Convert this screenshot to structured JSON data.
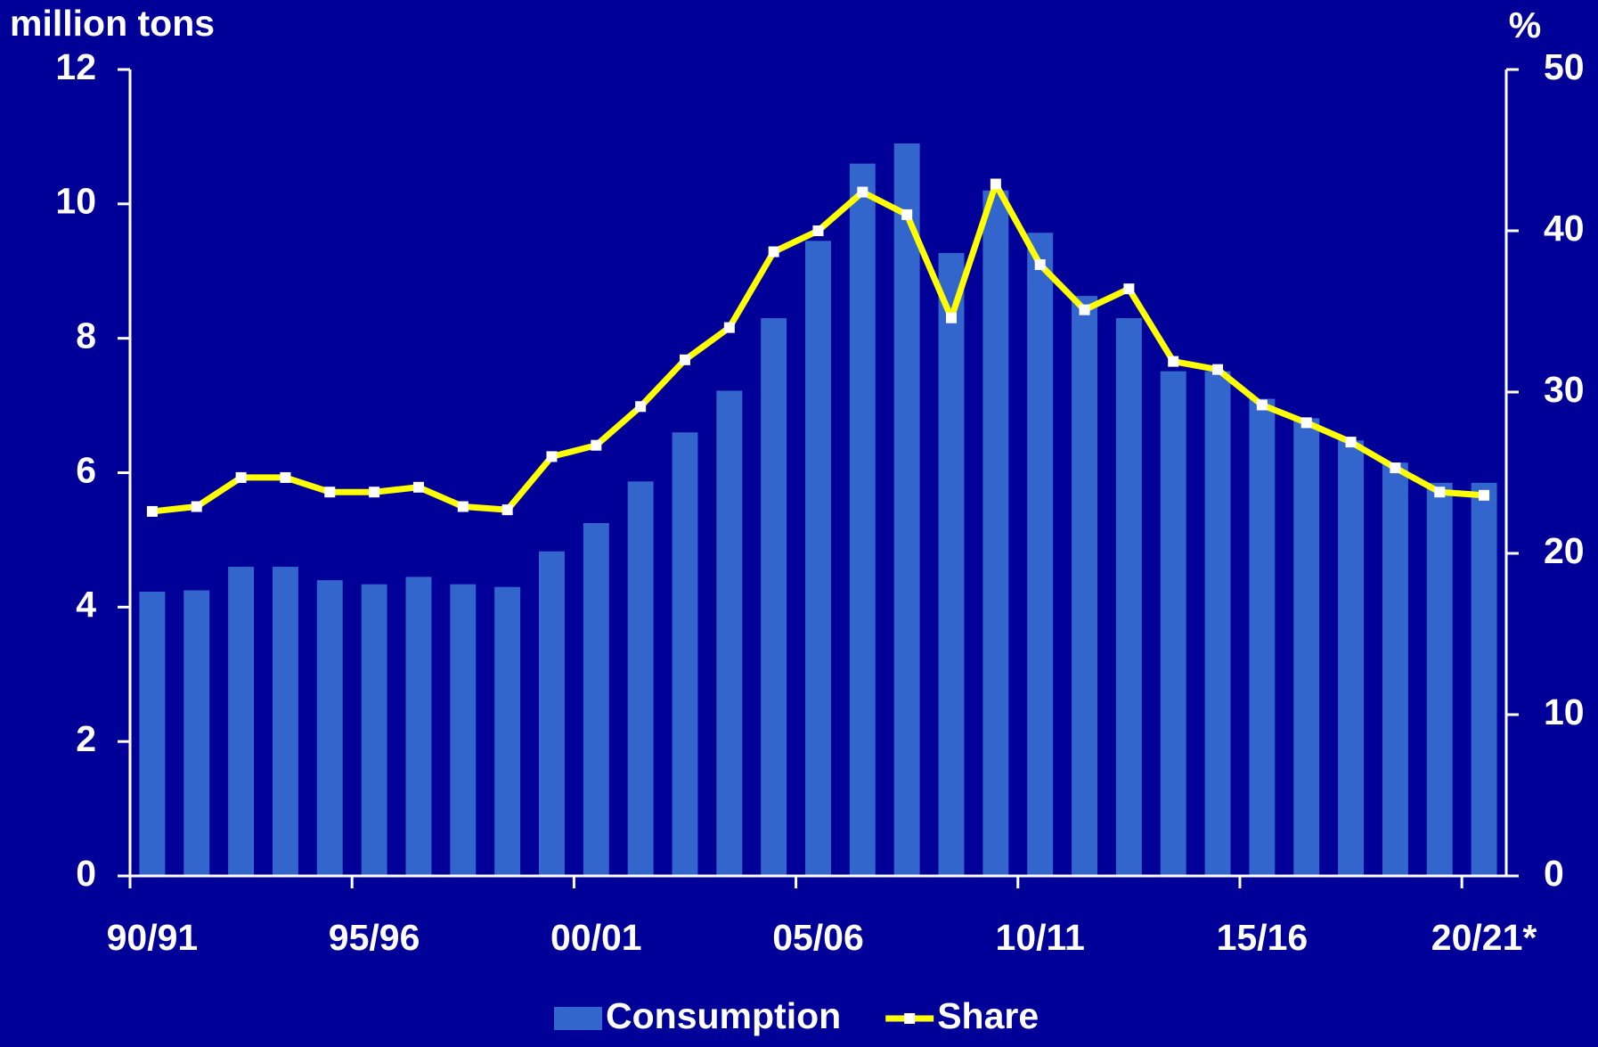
{
  "chart_data": {
    "type": "bar+line",
    "y_label": "million tons",
    "y2_label": "%",
    "categories": [
      "90/91",
      null,
      null,
      null,
      null,
      "95/96",
      null,
      null,
      null,
      null,
      "00/01",
      null,
      null,
      null,
      null,
      "05/06",
      null,
      null,
      null,
      null,
      "10/11",
      null,
      null,
      null,
      null,
      "15/16",
      null,
      null,
      null,
      null,
      "20/21*"
    ],
    "series": [
      {
        "name": "Consumption",
        "type": "bar",
        "color": "#3366cc",
        "values": [
          4.23,
          4.25,
          4.6,
          4.6,
          4.4,
          4.34,
          4.45,
          4.34,
          4.3,
          4.83,
          5.25,
          5.87,
          6.6,
          7.22,
          8.3,
          9.45,
          10.6,
          10.9,
          9.27,
          10.2,
          9.57,
          8.63,
          8.3,
          7.51,
          7.51,
          7.1,
          6.81,
          6.48,
          6.15,
          5.85,
          5.85
        ]
      },
      {
        "name": "Share",
        "type": "line",
        "axis": "y2",
        "color": "#ffff00",
        "marker_color": "#ffffff",
        "values": [
          22.6,
          22.9,
          24.7,
          24.7,
          23.8,
          23.8,
          24.1,
          22.9,
          22.7,
          26.0,
          26.7,
          29.1,
          32.0,
          34.0,
          38.7,
          40.0,
          42.4,
          41.0,
          34.6,
          42.9,
          37.9,
          35.1,
          36.4,
          31.9,
          31.4,
          29.2,
          28.1,
          26.9,
          25.3,
          23.8,
          23.6
        ]
      }
    ],
    "ylim": [
      0,
      12
    ],
    "yticks": [
      0,
      2,
      4,
      6,
      8,
      10,
      12
    ],
    "y2lim": [
      0,
      50
    ],
    "y2ticks": [
      0,
      10,
      20,
      30,
      40,
      50
    ],
    "legend": "bottom",
    "background": "#000099"
  }
}
